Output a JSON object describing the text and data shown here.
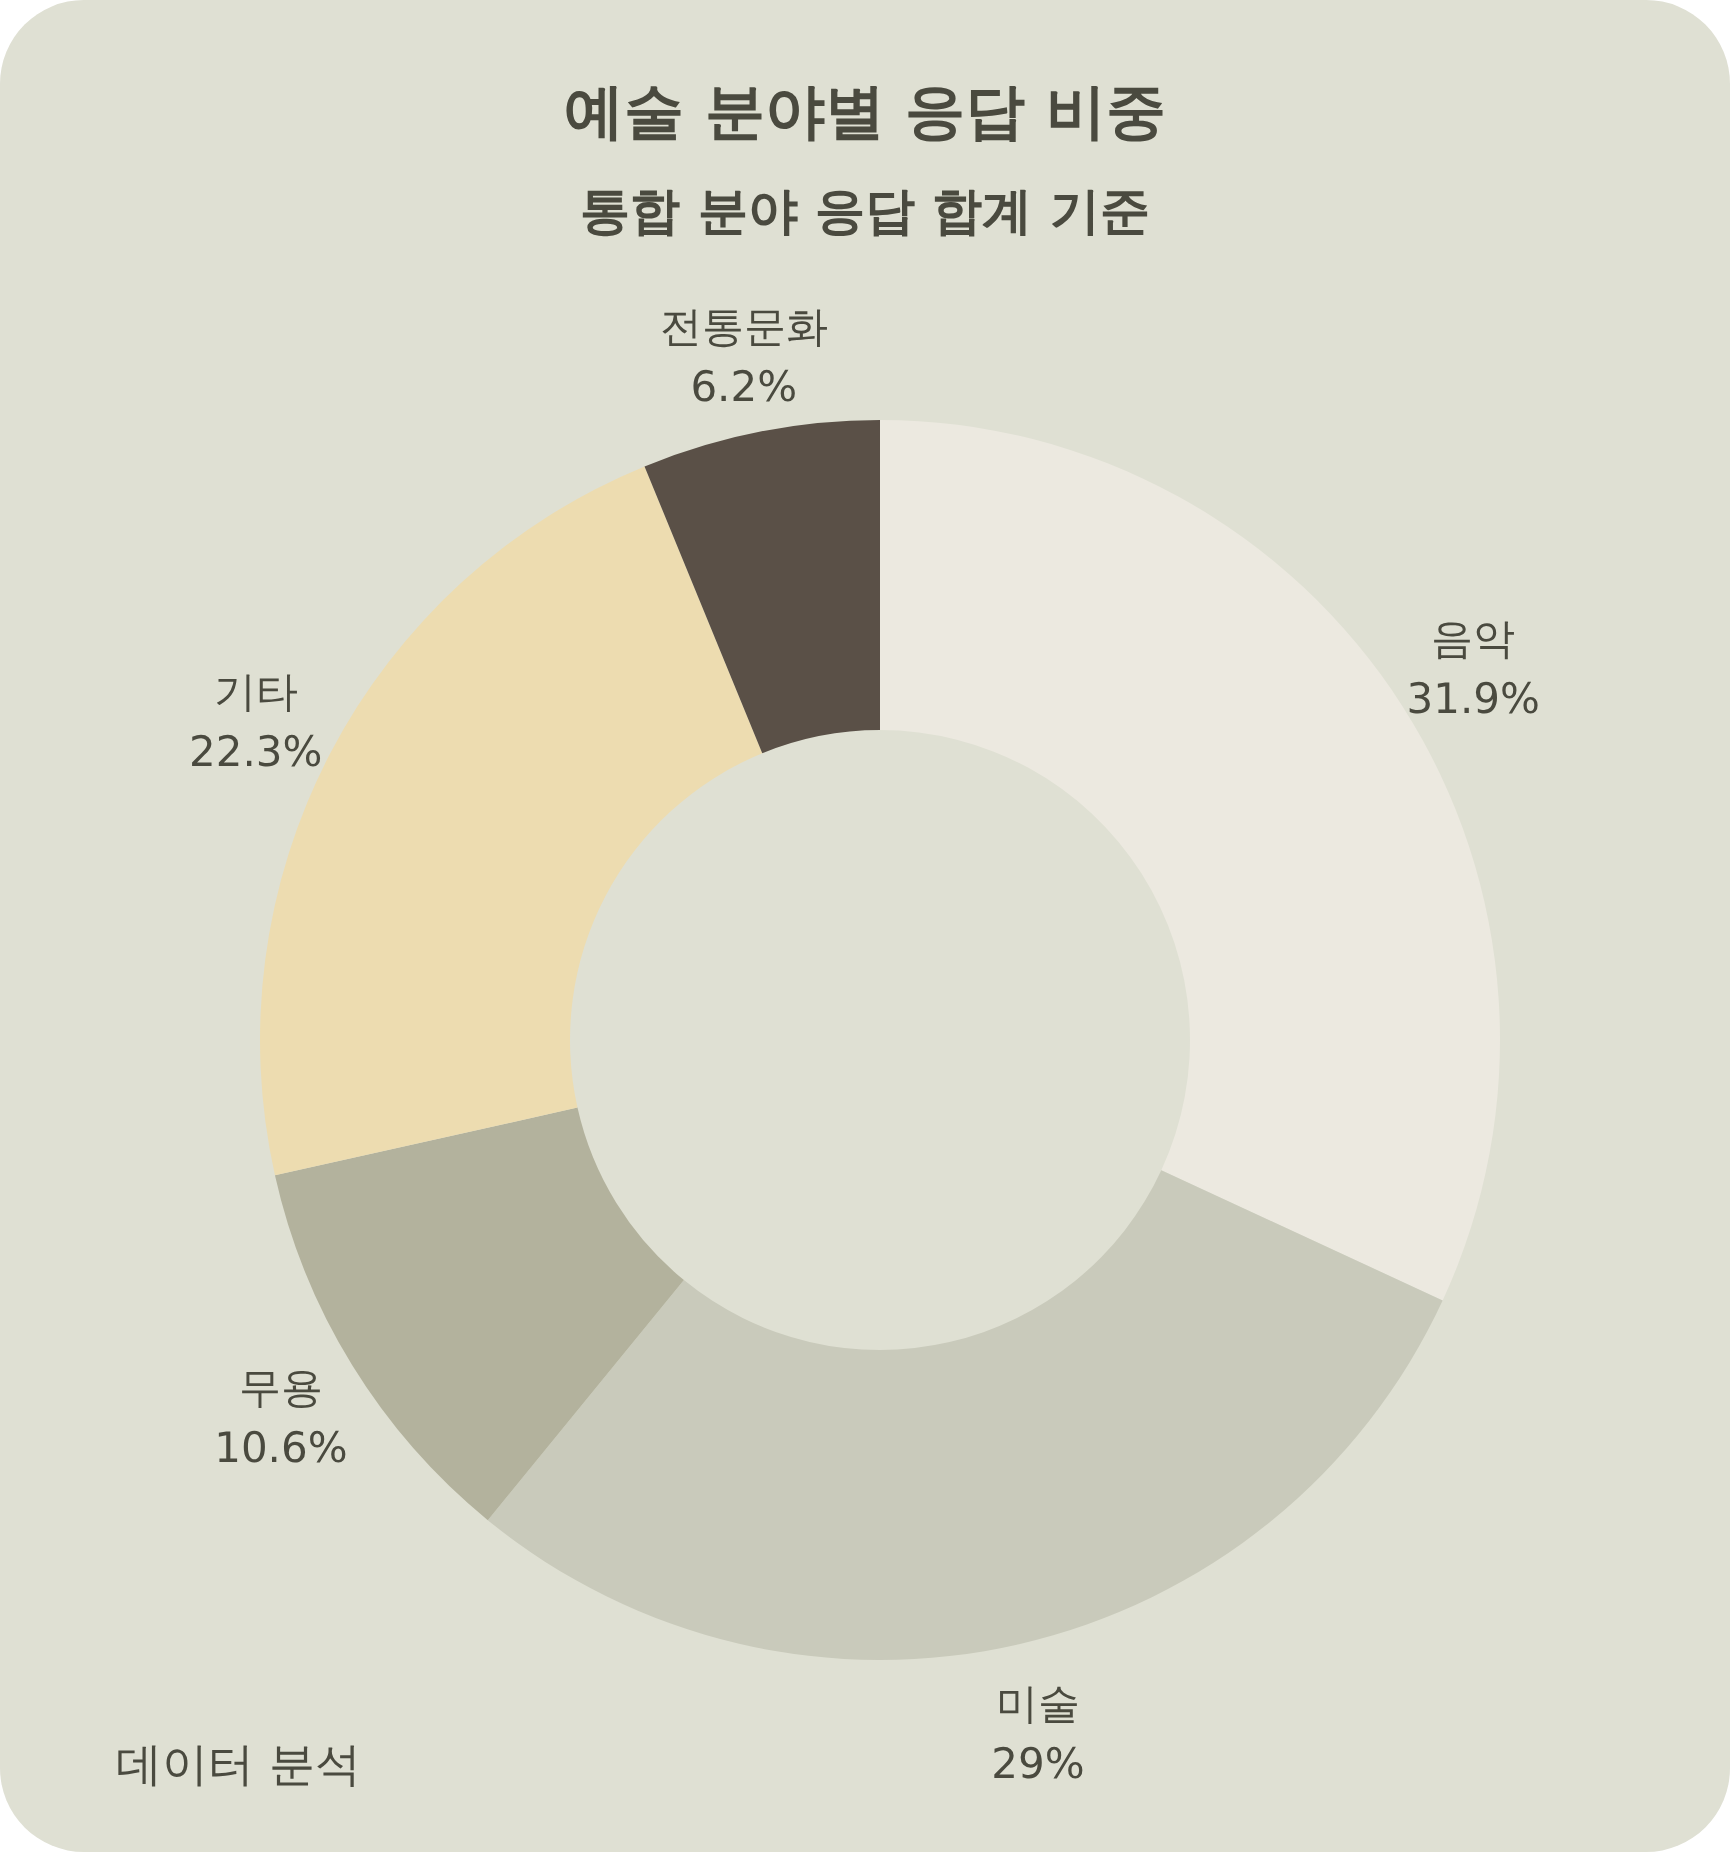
{
  "chart_data": {
    "type": "donut",
    "title": "예술 분야별 응답 비중",
    "subtitle": "통합 분야 응답 합계 기준",
    "categories": [
      "음악",
      "미술",
      "무용",
      "기타",
      "전통문화"
    ],
    "values": [
      31.9,
      29,
      10.6,
      22.3,
      6.2
    ],
    "value_labels": [
      "31.9%",
      "29%",
      "10.6%",
      "22.3%",
      "6.2%"
    ],
    "colors": [
      "#ece9e0",
      "#c9cabb",
      "#b3b29d",
      "#eddcb0",
      "#5a5047"
    ],
    "annotations": [
      "데이터 분석"
    ]
  }
}
